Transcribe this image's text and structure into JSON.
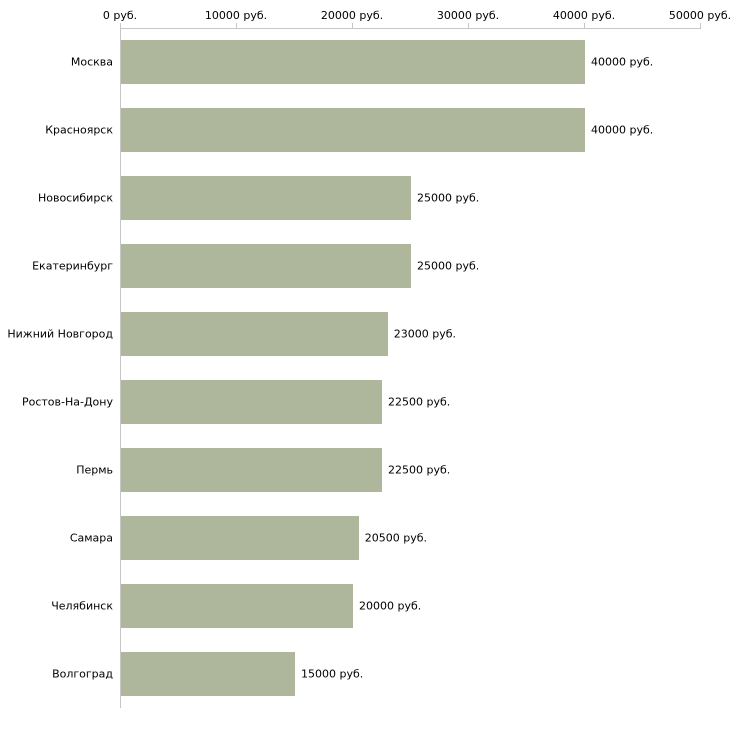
{
  "chart_data": {
    "type": "bar",
    "orientation": "horizontal",
    "title": "",
    "xlabel": "",
    "ylabel": "",
    "categories": [
      "Москва",
      "Красноярск",
      "Новосибирск",
      "Екатеринбург",
      "Нижний Новгород",
      "Ростов-На-Дону",
      "Пермь",
      "Самара",
      "Челябинск",
      "Волгоград"
    ],
    "values": [
      40000,
      40000,
      25000,
      25000,
      23000,
      22500,
      22500,
      20500,
      20000,
      15000
    ],
    "value_labels": [
      "40000 руб.",
      "40000 руб.",
      "25000 руб.",
      "25000 руб.",
      "23000 руб.",
      "22500 руб.",
      "22500 руб.",
      "20500 руб.",
      "20000 руб.",
      "15000 руб."
    ],
    "x_ticks": [
      0,
      10000,
      20000,
      30000,
      40000,
      50000
    ],
    "x_tick_labels": [
      "0 руб.",
      "10000 руб.",
      "20000 руб.",
      "30000 руб.",
      "40000 руб.",
      "50000 руб."
    ],
    "xlim": [
      0,
      50000
    ],
    "grid": false,
    "legend": false,
    "axis_position": "top",
    "colors": {
      "bar": "#aeb79c",
      "axis": "#c6c6c6",
      "text": "#000000",
      "background": "#ffffff"
    }
  }
}
